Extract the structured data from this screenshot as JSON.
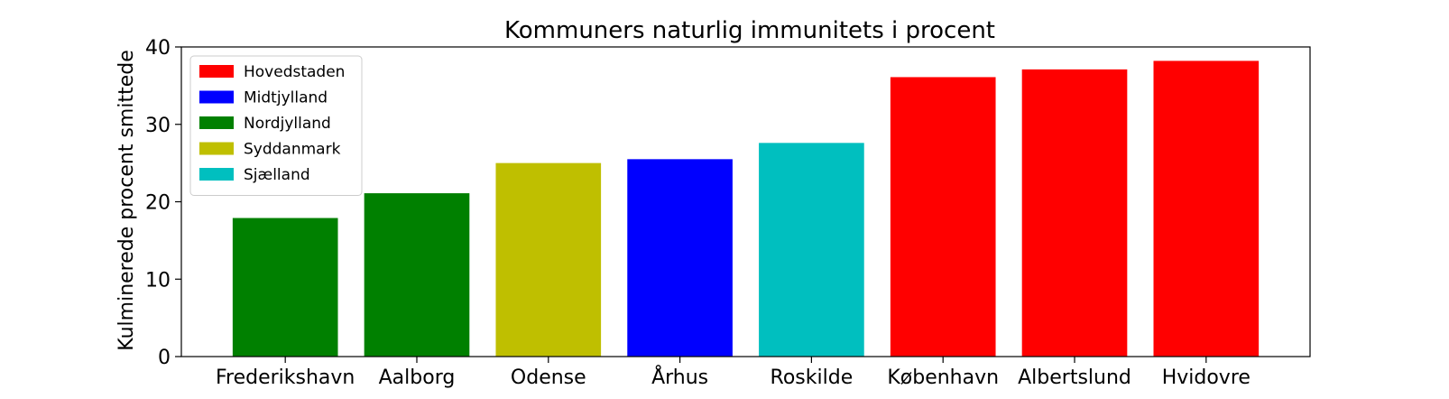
{
  "chart_data": {
    "type": "bar",
    "title": "Kommuners naturlig immunitets i procent",
    "xlabel": "",
    "ylabel": "Kulminerede procent smittede",
    "ylim": [
      0,
      40
    ],
    "yticks": [
      0,
      10,
      20,
      30,
      40
    ],
    "grid": false,
    "legend_position": "top-left",
    "categories": [
      "Frederikshavn",
      "Aalborg",
      "Odense",
      "Århus",
      "Roskilde",
      "København",
      "Albertslund",
      "Hvidovre"
    ],
    "values": [
      17.9,
      21.1,
      25.0,
      25.5,
      27.6,
      36.1,
      37.1,
      38.2
    ],
    "regions": [
      "Nordjylland",
      "Nordjylland",
      "Syddanmark",
      "Midtjylland",
      "Sjælland",
      "Hovedstaden",
      "Hovedstaden",
      "Hovedstaden"
    ],
    "legend": [
      {
        "label": "Hovedstaden",
        "color": "#ff0000"
      },
      {
        "label": "Midtjylland",
        "color": "#0000ff"
      },
      {
        "label": "Nordjylland",
        "color": "#008000"
      },
      {
        "label": "Syddanmark",
        "color": "#bfbf00"
      },
      {
        "label": "Sjælland",
        "color": "#00bfbf"
      }
    ]
  }
}
